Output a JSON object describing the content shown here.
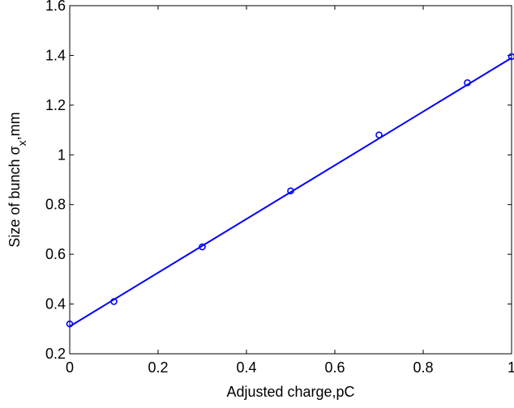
{
  "chart_data": {
    "type": "scatter",
    "title": "",
    "xlabel": "Adjusted charge,pC",
    "ylabel_parts": {
      "prefix": "Size of bunch σ",
      "subscript": "x",
      "suffix": ",mm"
    },
    "xlim": [
      0,
      1
    ],
    "ylim": [
      0.2,
      1.6
    ],
    "xticks": [
      0,
      0.2,
      0.4,
      0.6,
      0.8,
      1
    ],
    "xtick_labels": [
      "0",
      "0.2",
      "0.4",
      "0.6",
      "0.8",
      "1"
    ],
    "yticks": [
      0.2,
      0.4,
      0.6,
      0.8,
      1.0,
      1.2,
      1.4,
      1.6
    ],
    "ytick_labels": [
      "0.2",
      "0.4",
      "0.6",
      "0.8",
      "1",
      "1.2",
      "1.4",
      "1.6"
    ],
    "grid": false,
    "series": [
      {
        "kind": "markers",
        "marker": "circle-open",
        "color": "#0000ff",
        "x": [
          0,
          0.1,
          0.3,
          0.5,
          0.7,
          0.9,
          1.0
        ],
        "y": [
          0.32,
          0.41,
          0.63,
          0.855,
          1.08,
          1.29,
          1.395
        ]
      },
      {
        "kind": "line",
        "color": "#0000ff",
        "x": [
          0,
          1
        ],
        "y": [
          0.31,
          1.39
        ]
      }
    ]
  }
}
